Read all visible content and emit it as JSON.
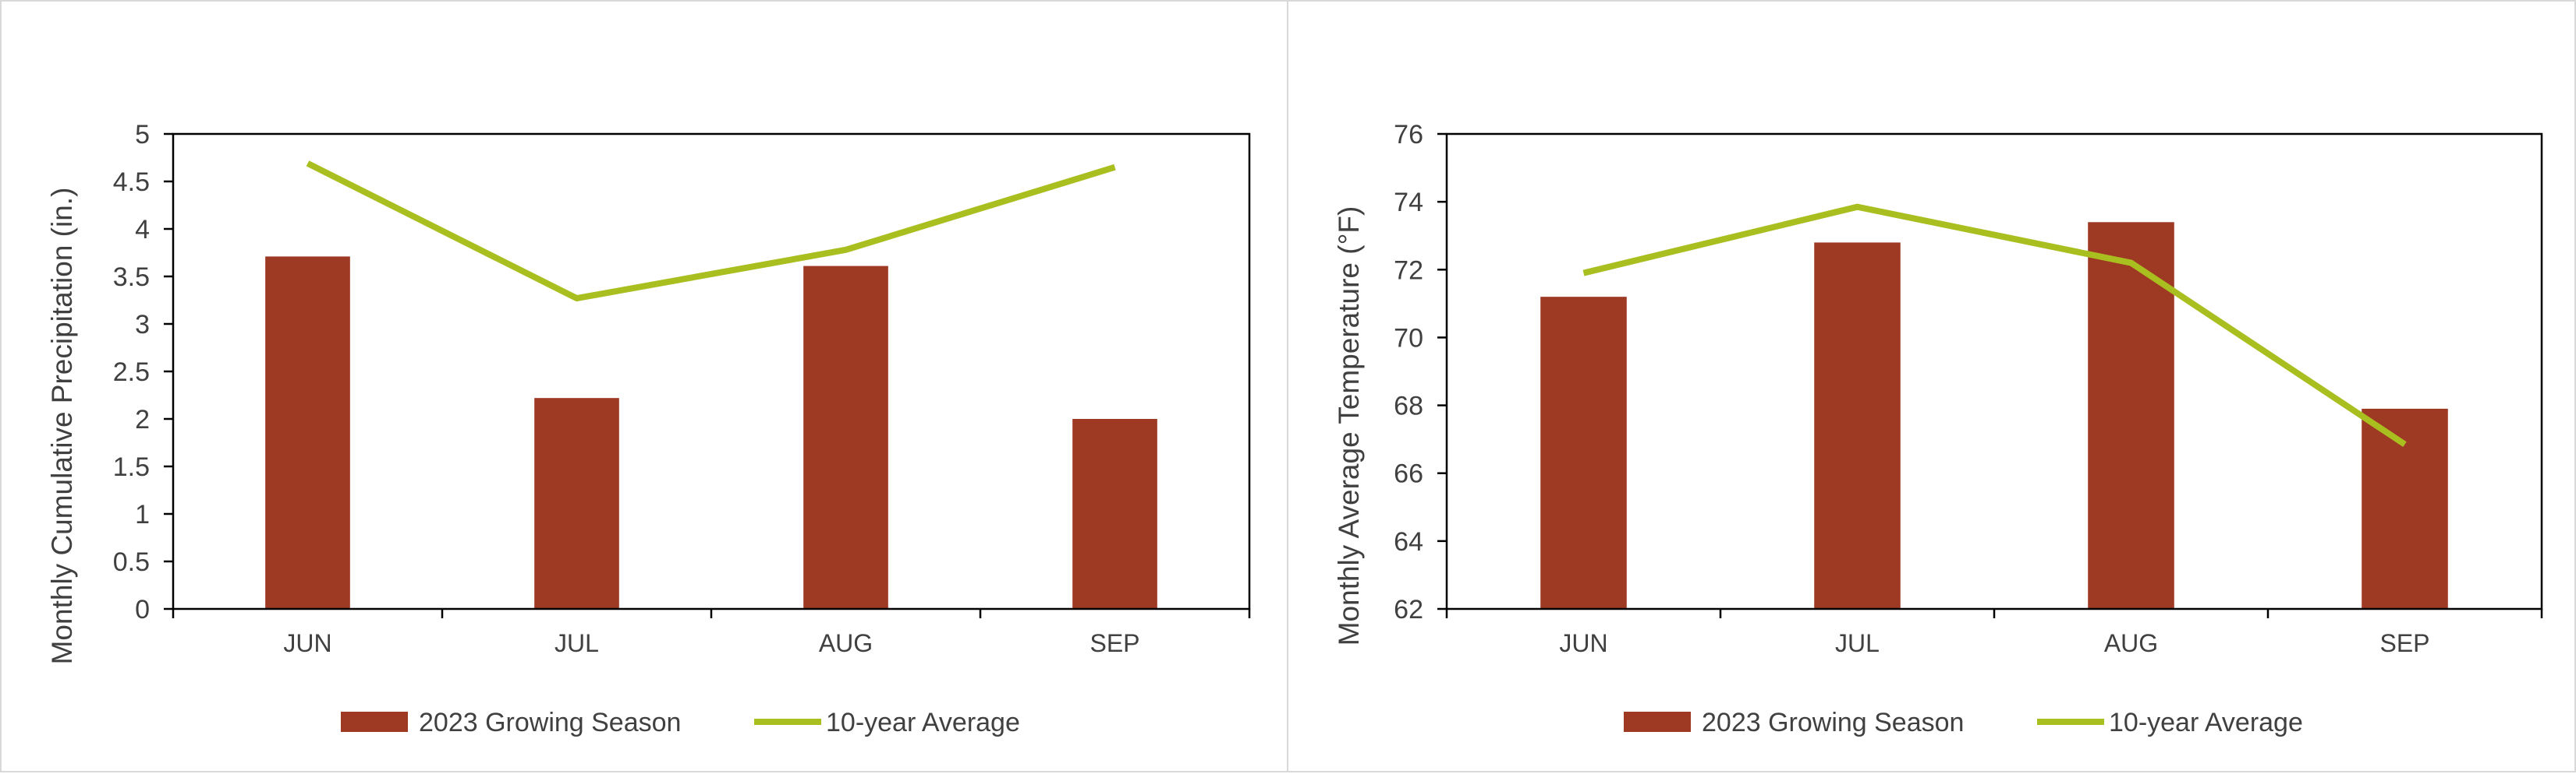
{
  "chart_data": [
    {
      "type": "bar",
      "categories": [
        "JUN",
        "JUL",
        "AUG",
        "SEP"
      ],
      "ylabel": "Monthly Cumulative Precipitation (in.)",
      "ylim": [
        0,
        5
      ],
      "yticks": [
        "0",
        "0.5",
        "1",
        "1.5",
        "2",
        "2.5",
        "3",
        "3.5",
        "4",
        "4.5",
        "5"
      ],
      "grid": false,
      "legend": "bottom",
      "series": [
        {
          "name": "2023 Growing Season",
          "kind": "bar",
          "color": "#9e3a24",
          "values": [
            3.71,
            2.22,
            3.61,
            2.0
          ]
        },
        {
          "name": "10-year Average",
          "kind": "line",
          "color": "#a9bf1f",
          "values": [
            4.69,
            3.27,
            3.78,
            4.65
          ]
        }
      ]
    },
    {
      "type": "bar",
      "categories": [
        "JUN",
        "JUL",
        "AUG",
        "SEP"
      ],
      "ylabel": "Monthly Average Temperature (°F)",
      "ylim": [
        62,
        76
      ],
      "yticks": [
        "62",
        "64",
        "66",
        "68",
        "70",
        "72",
        "74",
        "76"
      ],
      "grid": false,
      "legend": "bottom",
      "series": [
        {
          "name": "2023 Growing Season",
          "kind": "bar",
          "color": "#9e3a24",
          "values": [
            71.2,
            72.8,
            73.4,
            67.9
          ]
        },
        {
          "name": "10-year Average",
          "kind": "line",
          "color": "#a9bf1f",
          "values": [
            71.9,
            73.85,
            72.2,
            66.85
          ]
        }
      ]
    }
  ]
}
